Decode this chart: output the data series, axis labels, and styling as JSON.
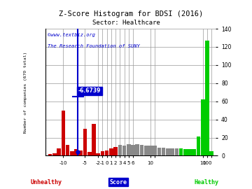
{
  "title": "Z-Score Histogram for BDSI (2016)",
  "subtitle": "Sector: Healthcare",
  "ylabel": "Number of companies (670 total)",
  "watermark1": "©www.textbiz.org",
  "watermark2": "The Research Foundation of SUNY",
  "bdsi_score_label": "-6.6739",
  "bdsi_score_display": -6.6739,
  "ylim": [
    0,
    140
  ],
  "yticks_right": [
    0,
    20,
    40,
    60,
    80,
    100,
    120,
    140
  ],
  "bars": [
    {
      "bin": -13,
      "height": 2,
      "color": "#cc0000"
    },
    {
      "bin": -12,
      "height": 3,
      "color": "#cc0000"
    },
    {
      "bin": -11,
      "height": 8,
      "color": "#cc0000"
    },
    {
      "bin": -10,
      "height": 50,
      "color": "#cc0000"
    },
    {
      "bin": -9,
      "height": 12,
      "color": "#cc0000"
    },
    {
      "bin": -8,
      "height": 5,
      "color": "#cc0000"
    },
    {
      "bin": -7,
      "height": 7,
      "color": "#cc0000"
    },
    {
      "bin": -6,
      "height": 6,
      "color": "#cc0000"
    },
    {
      "bin": -5,
      "height": 30,
      "color": "#cc0000"
    },
    {
      "bin": -4,
      "height": 4,
      "color": "#cc0000"
    },
    {
      "bin": -3,
      "height": 35,
      "color": "#cc0000"
    },
    {
      "bin": -2,
      "height": 3,
      "color": "#cc0000"
    },
    {
      "bin": -1,
      "height": 5,
      "color": "#cc0000"
    },
    {
      "bin": 0,
      "height": 6,
      "color": "#cc0000"
    },
    {
      "bin": 1,
      "height": 8,
      "color": "#cc0000"
    },
    {
      "bin": 2,
      "height": 10,
      "color": "#cc0000"
    },
    {
      "bin": 3,
      "height": 12,
      "color": "#888888"
    },
    {
      "bin": 4,
      "height": 11,
      "color": "#888888"
    },
    {
      "bin": 5,
      "height": 13,
      "color": "#888888"
    },
    {
      "bin": 6,
      "height": 12,
      "color": "#888888"
    },
    {
      "bin": 7,
      "height": 13,
      "color": "#888888"
    },
    {
      "bin": 8,
      "height": 12,
      "color": "#888888"
    },
    {
      "bin": 9,
      "height": 11,
      "color": "#888888"
    },
    {
      "bin": 10,
      "height": 11,
      "color": "#888888"
    },
    {
      "bin": 11,
      "height": 11,
      "color": "#888888"
    },
    {
      "bin": 12,
      "height": 9,
      "color": "#888888"
    },
    {
      "bin": 13,
      "height": 9,
      "color": "#888888"
    },
    {
      "bin": 14,
      "height": 8,
      "color": "#888888"
    },
    {
      "bin": 15,
      "height": 8,
      "color": "#888888"
    },
    {
      "bin": 16,
      "height": 8,
      "color": "#888888"
    },
    {
      "bin": 17,
      "height": 8,
      "color": "#00cc00"
    },
    {
      "bin": 18,
      "height": 7,
      "color": "#00cc00"
    },
    {
      "bin": 19,
      "height": 7,
      "color": "#00cc00"
    },
    {
      "bin": 20,
      "height": 7,
      "color": "#00cc00"
    },
    {
      "bin": 21,
      "height": 21,
      "color": "#00cc00"
    },
    {
      "bin": 22,
      "height": 62,
      "color": "#00cc00"
    },
    {
      "bin": 23,
      "height": 127,
      "color": "#00cc00"
    },
    {
      "bin": 24,
      "height": 5,
      "color": "#00cc00"
    }
  ],
  "xtick_bins": [
    -10,
    -5,
    -2,
    -1,
    0,
    1,
    2,
    3,
    4,
    5,
    6,
    10,
    11,
    22,
    23,
    24
  ],
  "xtick_labels": [
    "-10",
    "-5",
    "-2",
    "-1",
    "0",
    "1",
    "2",
    "3",
    "4",
    "5",
    "6",
    "10",
    "",
    "10",
    "100",
    ""
  ],
  "xlim_bin": [
    -14,
    25
  ],
  "background_color": "#ffffff",
  "grid_color": "#999999",
  "bdsi_line_color": "#0000cc",
  "unhealthy_color": "#cc0000",
  "healthy_color": "#00cc00",
  "score_color": "#0000cc",
  "watermark_color": "#0000cc"
}
